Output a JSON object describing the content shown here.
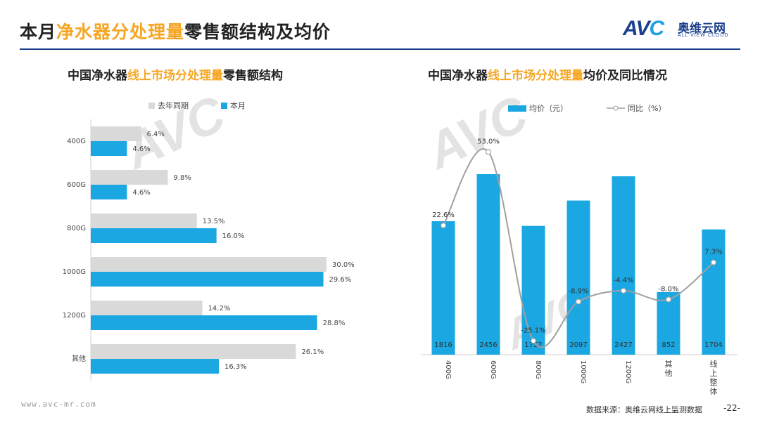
{
  "header": {
    "title_pre": "本月",
    "title_hl": "净水器分处理量",
    "title_post": "零售额结构及均价",
    "logo_mark": "AV",
    "logo_mark_c": "C",
    "logo_cn": "奥维云网",
    "logo_en": "ALL VIEW CLOUD"
  },
  "left_panel": {
    "title_pre": "中国净水器",
    "title_hl": "线上市场分处理量",
    "title_post": "零售额结构",
    "legend_last": "去年同期",
    "legend_current": "本月"
  },
  "right_panel": {
    "title_pre": "中国净水器",
    "title_hl": "线上市场分处理量",
    "title_post": "均价及同比情况",
    "legend_bar": "均价（元）",
    "legend_line": "同比（%）"
  },
  "watermark": {
    "text": "AVC"
  },
  "footer": {
    "url": "www.avc-mr.com",
    "source": "数据来源：奥维云网线上监测数据",
    "page": "-22-"
  },
  "colors": {
    "blue": "#1aa7e2",
    "gray": "#d9d9d9",
    "orange": "#f5a623",
    "navy": "#1b3f8c",
    "line": "#a0a0a0"
  },
  "chart_data": [
    {
      "type": "bar",
      "orientation": "horizontal",
      "title": "中国净水器线上市场分处理量零售额结构",
      "categories": [
        "400G",
        "600G",
        "800G",
        "1000G",
        "1200G",
        "其他"
      ],
      "series": [
        {
          "name": "去年同期",
          "values": [
            6.4,
            9.8,
            13.5,
            30.0,
            14.2,
            26.1
          ],
          "labels": [
            "6.4%",
            "9.8%",
            "13.5%",
            "30.0%",
            "14.2%",
            "26.1%"
          ]
        },
        {
          "name": "本月",
          "values": [
            4.6,
            4.6,
            16.0,
            29.6,
            28.8,
            16.3
          ],
          "labels": [
            "4.6%",
            "4.6%",
            "16.0%",
            "29.6%",
            "28.8%",
            "16.3%"
          ]
        }
      ],
      "unit": "%",
      "legend": "top-left"
    },
    {
      "type": "bar",
      "combo": "bar+line",
      "title": "中国净水器线上市场分处理量均价及同比情况",
      "categories": [
        "400G",
        "600G",
        "800G",
        "1000G",
        "1200G",
        "其他",
        "线上整体"
      ],
      "series": [
        {
          "name": "均价（元）",
          "type": "bar",
          "values": [
            1816,
            2456,
            1752,
            2097,
            2427,
            852,
            1704
          ],
          "labels": [
            "1816",
            "2456",
            "1752",
            "2097",
            "2427",
            "852",
            "1704"
          ]
        },
        {
          "name": "同比（%）",
          "type": "line",
          "smooth": true,
          "values": [
            22.6,
            53.0,
            -25.1,
            -8.9,
            -4.4,
            -8.0,
            7.3
          ],
          "labels": [
            "22.6%",
            "53.0%",
            "-25.1%",
            "-8.9%",
            "-4.4%",
            "-8.0%",
            "7.3%"
          ]
        }
      ],
      "legend": "top-left"
    }
  ]
}
